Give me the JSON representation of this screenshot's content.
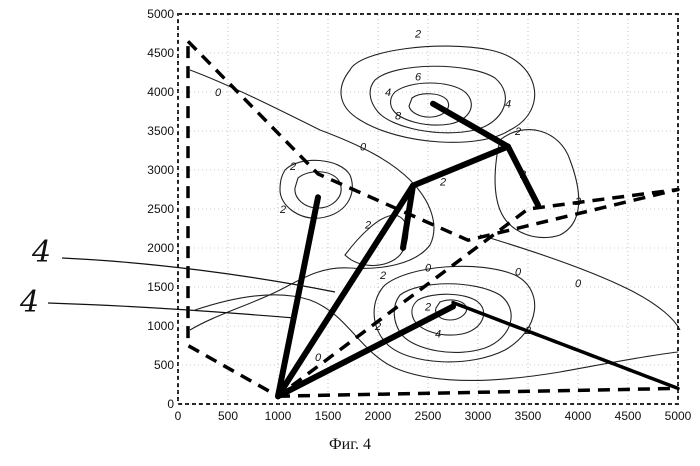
{
  "chart_data": {
    "type": "line",
    "xlim": [
      0,
      5000
    ],
    "ylim": [
      0,
      5000
    ],
    "x_ticks": [
      "0",
      "500",
      "1000",
      "1500",
      "2000",
      "2500",
      "3000",
      "3500",
      "4000",
      "4500",
      "5000"
    ],
    "y_ticks": [
      "0",
      "500",
      "1000",
      "1500",
      "2000",
      "2500",
      "3000",
      "3500",
      "4000",
      "4500",
      "5000"
    ],
    "grid": "dotted",
    "series": [
      {
        "style": "dashed",
        "points": [
          [
            100,
            4650
          ],
          [
            1400,
            2950
          ],
          [
            2900,
            2100
          ],
          [
            5000,
            2750
          ],
          [
            3500,
            2500
          ],
          [
            1000,
            100
          ],
          [
            100,
            750
          ],
          [
            100,
            4650
          ]
        ]
      },
      {
        "style": "dashed",
        "points": [
          [
            1000,
            100
          ],
          [
            5000,
            200
          ],
          [
            2750,
            1300
          ],
          [
            5000,
            200
          ]
        ]
      },
      {
        "style": "thick",
        "points": [
          [
            1000,
            100
          ],
          [
            2350,
            2800
          ],
          [
            3300,
            3300
          ],
          [
            2550,
            3850
          ]
        ]
      },
      {
        "style": "thick",
        "points": [
          [
            1000,
            100
          ],
          [
            1400,
            2650
          ]
        ]
      },
      {
        "style": "thick",
        "points": [
          [
            1000,
            100
          ],
          [
            2750,
            1250
          ]
        ]
      },
      {
        "style": "thick",
        "points": [
          [
            2350,
            2800
          ],
          [
            2250,
            2000
          ]
        ]
      },
      {
        "style": "thick",
        "points": [
          [
            3300,
            3300
          ],
          [
            3600,
            2550
          ]
        ]
      }
    ],
    "contour_labels": [
      {
        "text": "2",
        "x": 2400,
        "y": 4700
      },
      {
        "text": "4",
        "x": 2100,
        "y": 3950
      },
      {
        "text": "6",
        "x": 2400,
        "y": 4150
      },
      {
        "text": "8",
        "x": 2200,
        "y": 3650
      },
      {
        "text": "4",
        "x": 3300,
        "y": 3800
      },
      {
        "text": "2",
        "x": 3400,
        "y": 3450
      },
      {
        "text": "0",
        "x": 400,
        "y": 3950
      },
      {
        "text": "0",
        "x": 1850,
        "y": 3250
      },
      {
        "text": "2",
        "x": 1150,
        "y": 3000
      },
      {
        "text": "2",
        "x": 1050,
        "y": 2450
      },
      {
        "text": "2",
        "x": 2650,
        "y": 2800
      },
      {
        "text": "2",
        "x": 3450,
        "y": 2900
      },
      {
        "text": "2",
        "x": 4000,
        "y": 2550
      },
      {
        "text": "2",
        "x": 1900,
        "y": 2250
      },
      {
        "text": "2",
        "x": 2050,
        "y": 1600
      },
      {
        "text": "0",
        "x": 2500,
        "y": 1700
      },
      {
        "text": "2",
        "x": 2500,
        "y": 1200
      },
      {
        "text": "4",
        "x": 2600,
        "y": 850
      },
      {
        "text": "2",
        "x": 2000,
        "y": 950
      },
      {
        "text": "2",
        "x": 3500,
        "y": 900
      },
      {
        "text": "0",
        "x": 4000,
        "y": 1500
      },
      {
        "text": "0",
        "x": 1400,
        "y": 550
      },
      {
        "text": "0",
        "x": 3400,
        "y": 1650
      }
    ],
    "annotations": [
      "4",
      "4"
    ]
  },
  "caption": "Фиг. 4"
}
